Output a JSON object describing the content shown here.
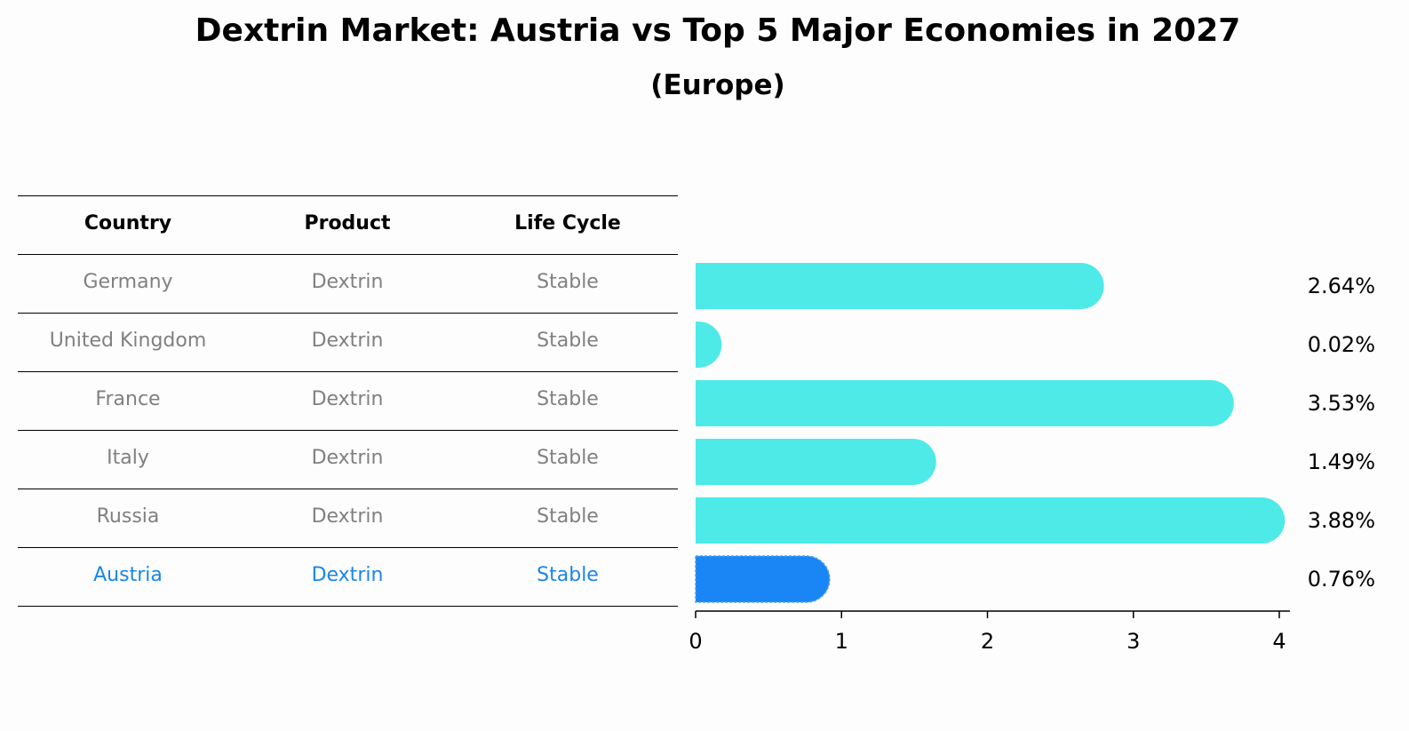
{
  "title": "Dextrin Market: Austria vs Top 5 Major Economies in 2027",
  "subtitle": "(Europe)",
  "table": {
    "headers": [
      "Country",
      "Product",
      "Life Cycle"
    ],
    "rows": [
      [
        "Germany",
        "Dextrin",
        "Stable"
      ],
      [
        "United Kingdom",
        "Dextrin",
        "Stable"
      ],
      [
        "France",
        "Dextrin",
        "Stable"
      ],
      [
        "Italy",
        "Dextrin",
        "Stable"
      ],
      [
        "Russia",
        "Dextrin",
        "Stable"
      ],
      [
        "Austria",
        "Dextrin",
        "Stable"
      ]
    ],
    "highlight_row": 5
  },
  "colors": {
    "bar": "#4eeae8",
    "highlight": "#1a86f5",
    "muted_text": "#808080",
    "highlight_text": "#1a86e8"
  },
  "chart_data": {
    "type": "bar",
    "orientation": "horizontal",
    "categories": [
      "Germany",
      "United Kingdom",
      "France",
      "Italy",
      "Russia",
      "Austria"
    ],
    "values": [
      2.64,
      0.02,
      3.53,
      1.49,
      3.88,
      0.76
    ],
    "value_labels": [
      "2.64%",
      "0.02%",
      "3.53%",
      "1.49%",
      "3.88%",
      "0.76%"
    ],
    "xlim": [
      0,
      4
    ],
    "xticks": [
      0,
      1,
      2,
      3,
      4
    ],
    "grid": false,
    "highlight_category": "Austria"
  }
}
